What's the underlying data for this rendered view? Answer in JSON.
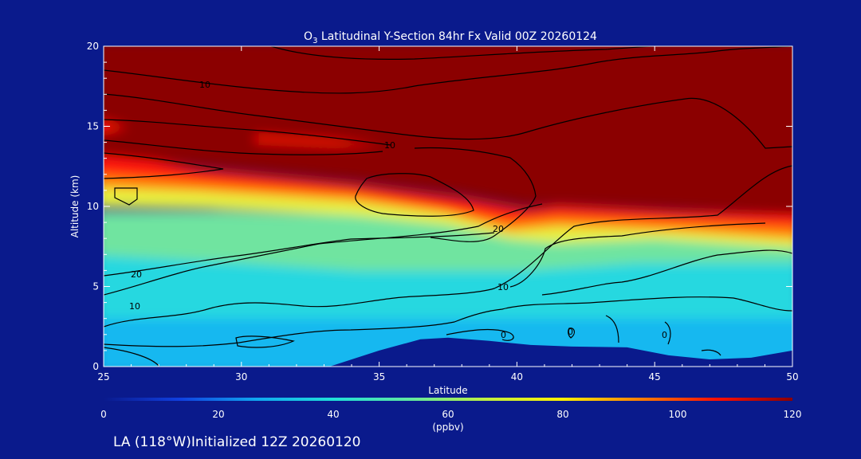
{
  "chart_data": {
    "type": "heatmap",
    "title_pre": "O",
    "title_sub": "3",
    "title_post": " Latitudinal Y-Section 84hr  Fx Valid 00Z 20260124",
    "xlabel": "Latitude",
    "ylabel": "Altitude (km)",
    "xlim": [
      25,
      50
    ],
    "ylim": [
      0,
      20
    ],
    "x_ticks": [
      "25",
      "30",
      "35",
      "40",
      "45",
      "50"
    ],
    "y_ticks": [
      "0",
      "5",
      "10",
      "15",
      "20"
    ],
    "colorbar": {
      "ticks": [
        "0",
        "20",
        "40",
        "60",
        "80",
        "100",
        "120"
      ],
      "min": 0,
      "max": 120,
      "unit": "(ppbv)",
      "colors": [
        "#0a1a8c",
        "#1040e0",
        "#10a8f0",
        "#20e0d8",
        "#60e8a0",
        "#c0f040",
        "#fff000",
        "#ff8000",
        "#ff1000",
        "#8b0000"
      ]
    },
    "terrain_km": [
      {
        "lat": 25,
        "alt": 0
      },
      {
        "lat": 33.2,
        "alt": 0
      },
      {
        "lat": 35,
        "alt": 1.0
      },
      {
        "lat": 36.5,
        "alt": 1.7
      },
      {
        "lat": 37.5,
        "alt": 1.8
      },
      {
        "lat": 39,
        "alt": 1.6
      },
      {
        "lat": 40.5,
        "alt": 1.35
      },
      {
        "lat": 42,
        "alt": 1.25
      },
      {
        "lat": 44,
        "alt": 1.2
      },
      {
        "lat": 45.5,
        "alt": 0.7
      },
      {
        "lat": 47,
        "alt": 0.45
      },
      {
        "lat": 48.5,
        "alt": 0.55
      },
      {
        "lat": 50,
        "alt": 1.0
      }
    ],
    "contour_labels": [
      "10",
      "10",
      "20",
      "10",
      "20",
      "10",
      "0",
      "0",
      "0"
    ],
    "footer": "LA (118°W)Initialized 12Z 20260120"
  }
}
